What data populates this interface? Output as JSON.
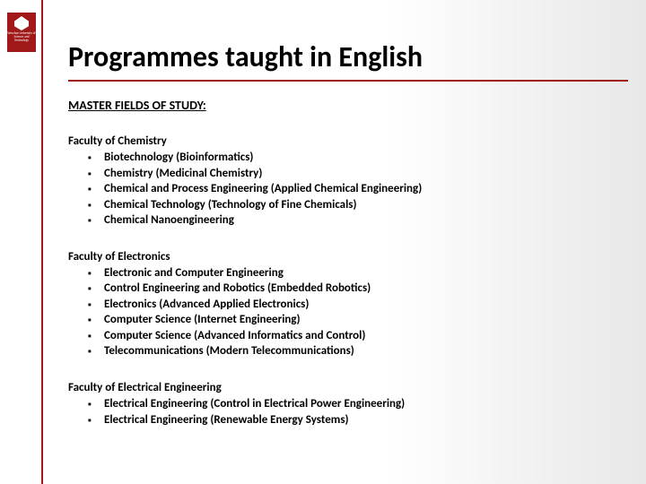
{
  "title": "Programmes taught in English",
  "subheading": "MASTER FIELDS OF STUDY:",
  "logo_text": "Wrocław University of Science and Technology",
  "colors": {
    "accent": "#a01818",
    "text": "#000000",
    "background_start": "#ffffff",
    "background_end": "#e8e8e8"
  },
  "faculties": [
    {
      "name": "Faculty of Chemistry",
      "items": [
        "Biotechnology (Bioinformatics)",
        "Chemistry (Medicinal Chemistry)",
        "Chemical and Process Engineering (Applied Chemical Engineering)",
        "Chemical Technology (Technology of Fine Chemicals)",
        "Chemical Nanoengineering"
      ]
    },
    {
      "name": "Faculty of Electronics",
      "items": [
        "Electronic and Computer Engineering",
        "Control Engineering and Robotics (Embedded Robotics)",
        "Electronics  (Advanced Applied Electronics)",
        "Computer Science  (Internet Engineering)",
        "Computer Science  (Advanced Informatics and Control)",
        "Telecommunications (Modern Telecommunications)"
      ]
    },
    {
      "name": "Faculty of Electrical Engineering",
      "items": [
        "Electrical Engineering (Control in Electrical Power Engineering)",
        "Electrical Engineering (Renewable Energy Systems)"
      ]
    }
  ]
}
